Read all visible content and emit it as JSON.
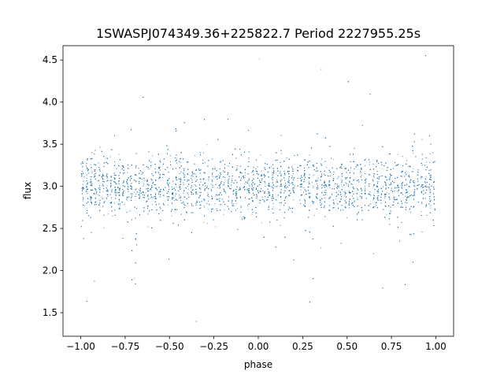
{
  "chart_data": {
    "type": "scatter",
    "title": "1SWASPJ074349.36+225822.7 Period 2227955.25s",
    "xlabel": "phase",
    "ylabel": "flux",
    "xlim": [
      -1.1,
      1.1
    ],
    "ylim": [
      1.22,
      4.67
    ],
    "xticks": [
      -1.0,
      -0.75,
      -0.5,
      -0.25,
      0.0,
      0.25,
      0.5,
      0.75,
      1.0
    ],
    "xtick_labels": [
      "−1.00",
      "−0.75",
      "−0.50",
      "−0.25",
      "0.00",
      "0.25",
      "0.50",
      "0.75",
      "1.00"
    ],
    "yticks": [
      1.5,
      2.0,
      2.5,
      3.0,
      3.5,
      4.0,
      4.5
    ],
    "ytick_labels": [
      "1.5",
      "2.0",
      "2.5",
      "3.0",
      "3.5",
      "4.0",
      "4.5"
    ],
    "grid": false,
    "marker_color": "#1f77b4",
    "series": [
      {
        "x_range": [
          -1.0,
          1.0
        ],
        "y_center": 3.0,
        "y_core_spread": [
          2.7,
          3.3
        ],
        "y_extremes": [
          1.4,
          4.65
        ],
        "phase_folded": true,
        "dip_phases": [
          -0.7,
          0.3
        ],
        "dip_min_flux": 1.6
      }
    ]
  }
}
